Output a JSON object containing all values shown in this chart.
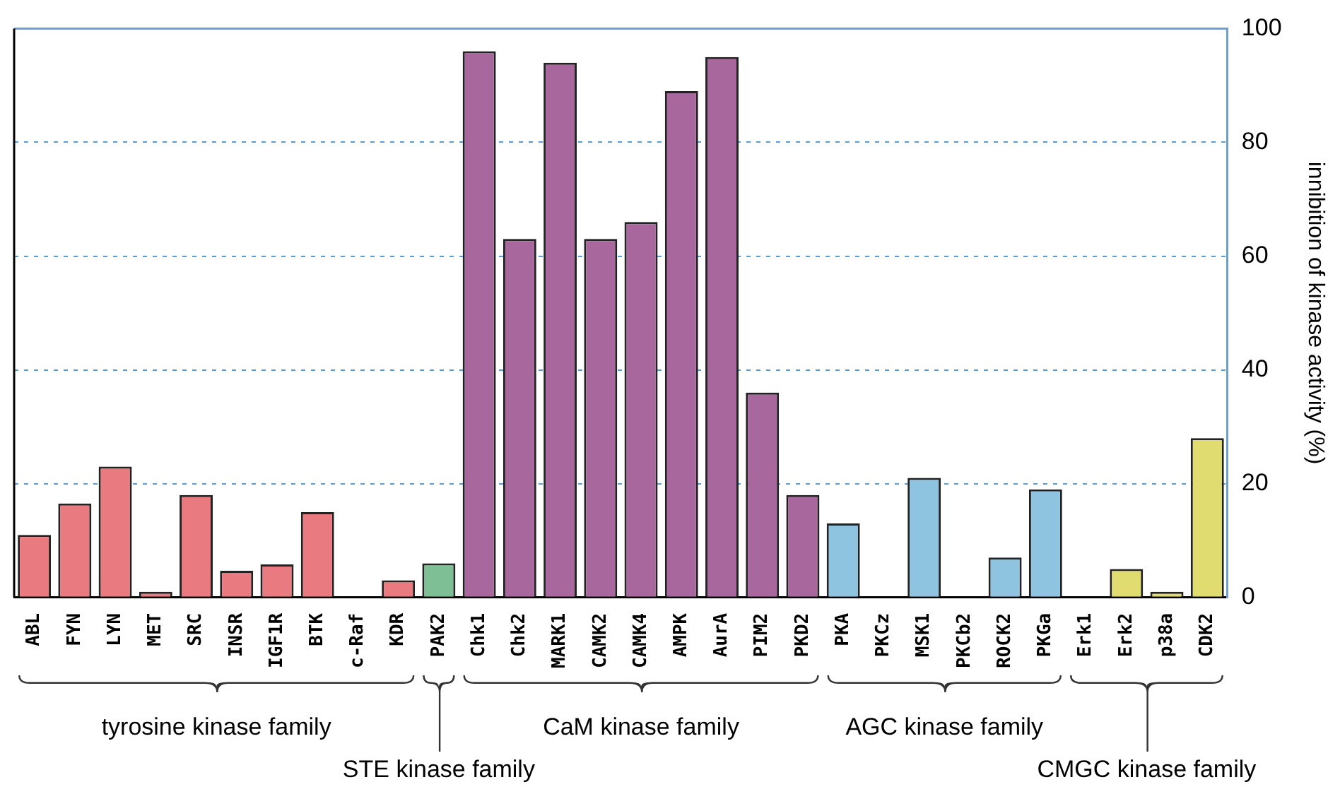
{
  "chart_data": {
    "type": "bar",
    "categories": [
      "ABL",
      "FYN",
      "LYN",
      "MET",
      "SRC",
      "INSR",
      "IGF1R",
      "BTK",
      "c-Raf",
      "KDR",
      "PAK2",
      "Chk1",
      "Chk2",
      "MARK1",
      "CAMK2",
      "CAMK4",
      "AMPK",
      "AurA",
      "PIM2",
      "PKD2",
      "PKA",
      "PKCz",
      "MSK1",
      "PKCb2",
      "ROCK2",
      "PKGa",
      "Erk1",
      "Erk2",
      "p38a",
      "CDK2"
    ],
    "values": [
      11,
      16.5,
      23,
      1,
      18,
      4.7,
      5.8,
      15,
      0,
      3,
      6,
      96,
      63,
      94,
      63,
      66,
      89,
      95,
      36,
      18,
      13,
      0,
      21,
      0,
      7,
      19,
      0,
      5,
      1,
      28
    ],
    "colors": [
      "#e87a80",
      "#e87a80",
      "#e87a80",
      "#e87a80",
      "#e87a80",
      "#e87a80",
      "#e87a80",
      "#e87a80",
      "#e87a80",
      "#e87a80",
      "#7fbf95",
      "#a8689e",
      "#a8689e",
      "#a8689e",
      "#a8689e",
      "#a8689e",
      "#a8689e",
      "#a8689e",
      "#a8689e",
      "#a8689e",
      "#8ec4e0",
      "#8ec4e0",
      "#8ec4e0",
      "#8ec4e0",
      "#8ec4e0",
      "#8ec4e0",
      "#e0dc70",
      "#e0dc70",
      "#e0dc70",
      "#e0dc70"
    ],
    "ylabel": "innibition of kinase activity (%)",
    "ylim": [
      0,
      100
    ],
    "yticks": [
      0,
      20,
      40,
      60,
      80,
      100
    ],
    "grid": "y",
    "legend": false,
    "annotations": [
      "tyrosine kinase family",
      "STE kinase family",
      "CaM kinase family",
      "AGC kinase family",
      "CMGC kinase family"
    ]
  }
}
